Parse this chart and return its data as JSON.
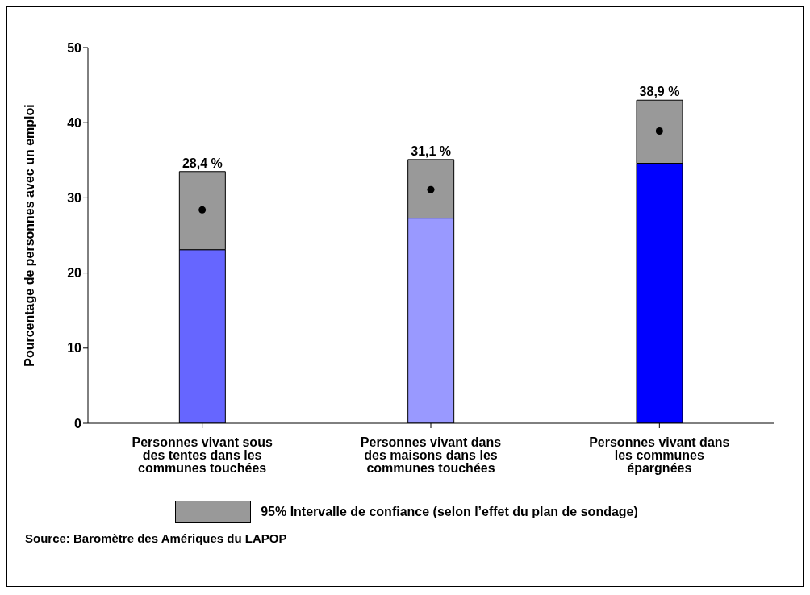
{
  "chart_data": {
    "type": "bar",
    "stacked": true,
    "categories": [
      "Personnes vivant sous des tentes dans les communes touchées",
      "Personnes vivant dans des maisons dans les communes touchées",
      "Personnes vivant dans les communes épargnées"
    ],
    "series": [
      {
        "colors": [
          "#6666ff",
          "#9999ff",
          "#0000ff"
        ],
        "values": [
          23.1,
          27.3,
          34.6
        ]
      },
      {
        "name": "95% Intervalle de confiance (selon l’effet du plan de sondage)",
        "color": "#999999",
        "values": [
          10.4,
          7.8,
          8.4
        ]
      },
      {
        "type": "scatter",
        "color": "#000000",
        "x": [
          "Personnes vivant sous des tentes dans les communes touchées",
          "Personnes vivant dans des maisons dans les communes touchées",
          "Personnes vivant dans les communes épargnées"
        ],
        "values": [
          28.4,
          31.1,
          38.9
        ],
        "value_labels": [
          "28,4 %",
          "31,1 %",
          "38,9 %"
        ]
      }
    ],
    "ylabel": "Pourcentage de personnes avec un emploi",
    "ylim": [
      0,
      50
    ],
    "yticks": [
      0,
      10,
      20,
      30,
      40,
      50
    ],
    "legend": "bottom",
    "marker": "circle",
    "annotations": [
      "Source: Baromètre des Amériques du LAPOP"
    ]
  }
}
